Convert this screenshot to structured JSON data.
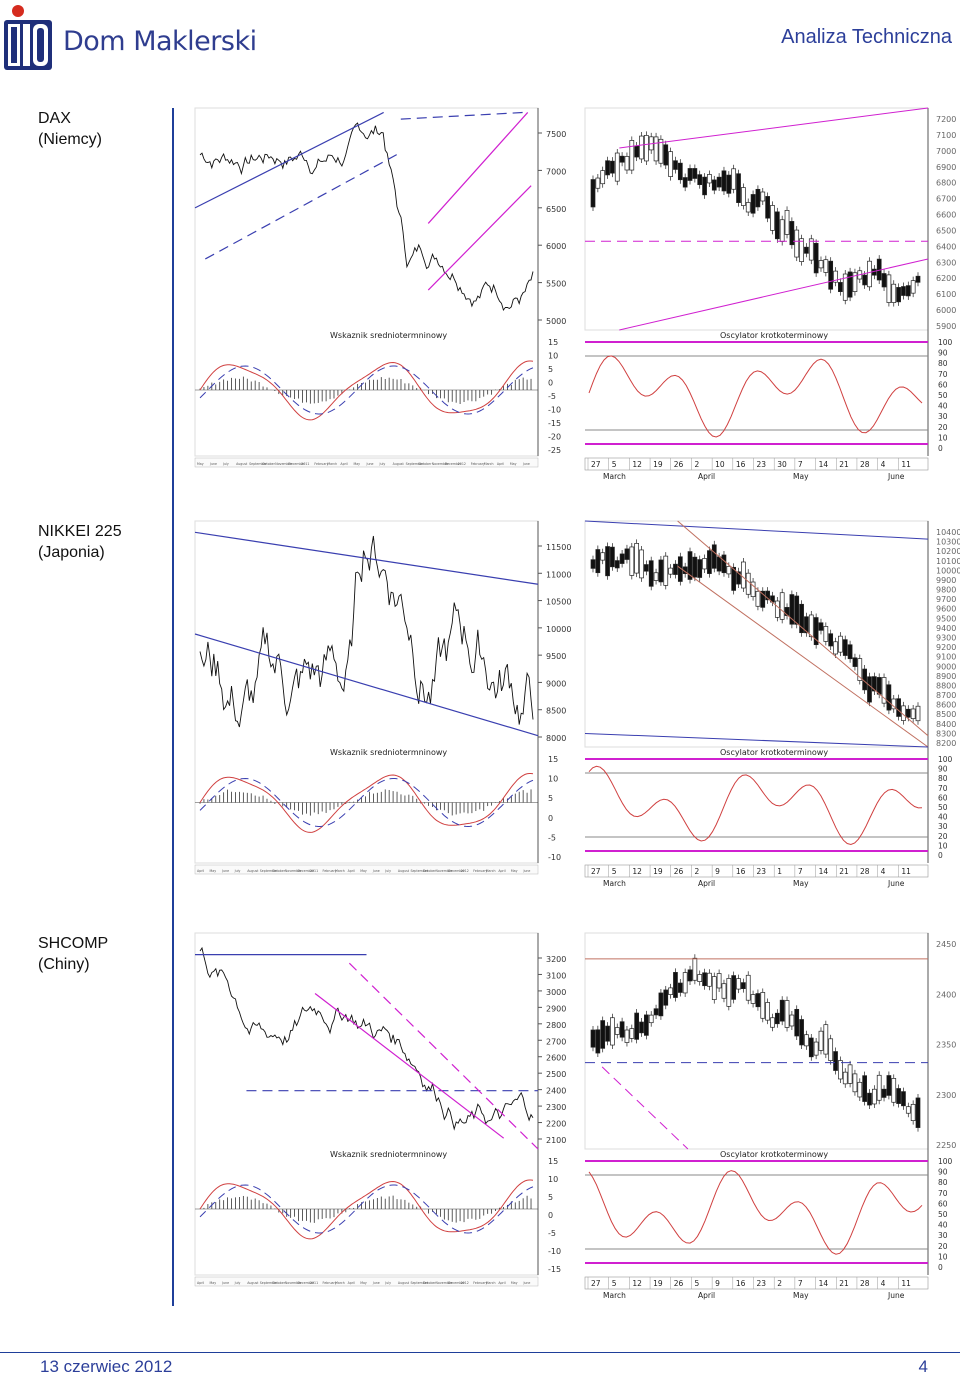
{
  "header": {
    "brand": "Dom Maklerski",
    "title": "Analiza Techniczna",
    "logo_text": "PKO"
  },
  "indices": [
    {
      "name": "DAX",
      "country": "(Niemcy)",
      "price_axis_left": [
        "7500",
        "7000",
        "6500",
        "6000",
        "5500",
        "5000"
      ],
      "osc_axis_left": [
        "15",
        "10",
        "5",
        "0",
        "-5",
        "-10",
        "-15",
        "-20",
        "-25"
      ],
      "price_axis_right": [
        "7200",
        "7100",
        "7000",
        "6900",
        "6800",
        "6700",
        "6600",
        "6500",
        "6400",
        "6300",
        "6200",
        "6100",
        "6000",
        "5900"
      ],
      "osc_axis_right": [
        "100",
        "90",
        "80",
        "70",
        "60",
        "50",
        "40",
        "30",
        "20",
        "10",
        "0"
      ],
      "days": [
        "27",
        "5",
        "12",
        "19",
        "26",
        "2",
        "10",
        "16",
        "23",
        "30",
        "7",
        "14",
        "21",
        "28",
        "4",
        "11"
      ],
      "months": [
        "March",
        "April",
        "May",
        "June"
      ],
      "bottom_months": [
        "May",
        "June",
        "July",
        "August",
        "September",
        "October",
        "November",
        "December",
        "2011",
        "February",
        "March",
        "April",
        "May",
        "June",
        "July",
        "August",
        "September",
        "October",
        "November",
        "December",
        "2012",
        "February",
        "March",
        "April",
        "May",
        "June"
      ]
    },
    {
      "name": "NIKKEI 225",
      "country": "(Japonia)",
      "price_axis_left": [
        "11500",
        "11000",
        "10500",
        "10000",
        "9500",
        "9000",
        "8500",
        "8000"
      ],
      "osc_axis_left": [
        "15",
        "10",
        "5",
        "0",
        "-5",
        "-10"
      ],
      "price_axis_right": [
        "10400",
        "10300",
        "10200",
        "10100",
        "10000",
        "9900",
        "9800",
        "9700",
        "9600",
        "9500",
        "9400",
        "9300",
        "9200",
        "9100",
        "9000",
        "8900",
        "8800",
        "8700",
        "8600",
        "8500",
        "8400",
        "8300",
        "8200"
      ],
      "osc_axis_right": [
        "100",
        "90",
        "80",
        "70",
        "60",
        "50",
        "40",
        "30",
        "20",
        "10",
        "0"
      ],
      "days": [
        "27",
        "5",
        "12",
        "19",
        "26",
        "2",
        "9",
        "16",
        "23",
        "1",
        "7",
        "14",
        "21",
        "28",
        "4",
        "11"
      ],
      "months": [
        "March",
        "April",
        "May",
        "June"
      ],
      "bottom_months": [
        "April",
        "May",
        "June",
        "July",
        "August",
        "September",
        "October",
        "November",
        "December",
        "2011",
        "February",
        "March",
        "April",
        "May",
        "June",
        "July",
        "August",
        "September",
        "October",
        "November",
        "December",
        "2012",
        "February",
        "March",
        "April",
        "May",
        "June"
      ]
    },
    {
      "name": "SHCOMP",
      "country": "(Chiny)",
      "price_axis_left": [
        "3200",
        "3100",
        "3000",
        "2900",
        "2800",
        "2700",
        "2600",
        "2500",
        "2400",
        "2300",
        "2200",
        "2100"
      ],
      "osc_axis_left": [
        "15",
        "10",
        "5",
        "0",
        "-5",
        "-10",
        "-15"
      ],
      "price_axis_right": [
        "2450",
        "2400",
        "2350",
        "2300",
        "2250"
      ],
      "osc_axis_right": [
        "100",
        "90",
        "80",
        "70",
        "60",
        "50",
        "40",
        "30",
        "20",
        "10",
        "0"
      ],
      "days": [
        "27",
        "5",
        "12",
        "19",
        "26",
        "5",
        "9",
        "16",
        "23",
        "2",
        "7",
        "14",
        "21",
        "28",
        "4",
        "11"
      ],
      "months": [
        "March",
        "April",
        "May",
        "June"
      ],
      "bottom_months": [
        "April",
        "May",
        "June",
        "July",
        "August",
        "September",
        "October",
        "November",
        "December",
        "2011",
        "February",
        "March",
        "April",
        "May",
        "June",
        "July",
        "August",
        "September",
        "October",
        "November",
        "December",
        "2012",
        "February",
        "March",
        "April",
        "May",
        "June"
      ]
    }
  ],
  "labels": {
    "macd": "Wskaznik sredniotermninowy",
    "stoch": "Oscylator krotkoterminowy"
  },
  "footer": {
    "date": "13 czerwiec 2012",
    "page": "4"
  },
  "colors": {
    "brand_blue": "#2c3f9a",
    "logo_red": "#d52b1e",
    "trend_blue": "#3a3fb0",
    "trend_magenta": "#d020d0",
    "osc_red": "#d04040"
  }
}
